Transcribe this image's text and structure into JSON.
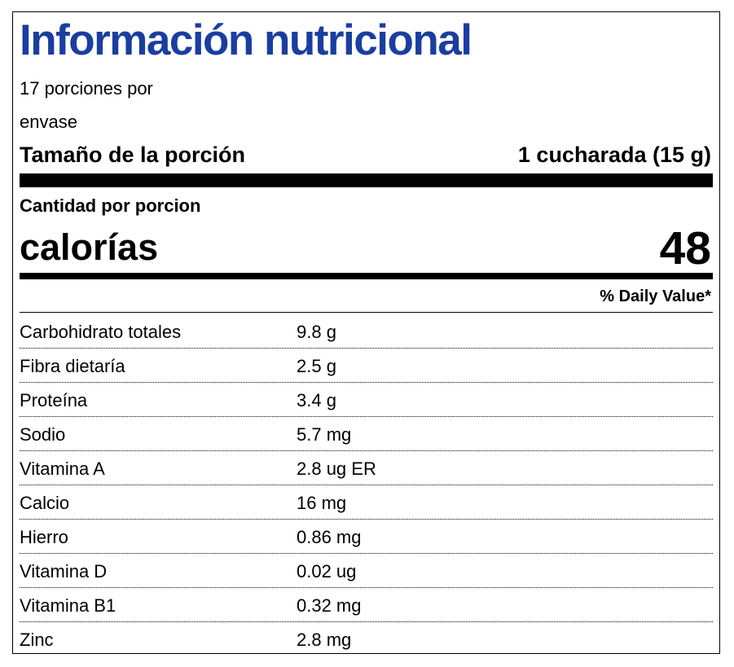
{
  "header": {
    "title": "Información nutricional",
    "servings_line1": "17 porciones por",
    "servings_line2": "envase",
    "serving_size_label": "Tamaño de la porción",
    "serving_size_value": "1 cucharada (15 g)"
  },
  "calories": {
    "amount_label": "Cantidad por porcion",
    "label": "calorías",
    "value": 48
  },
  "daily_value_header": "% Daily Value*",
  "table": {
    "rows": [
      [
        "Carbohidrato totales",
        "9.8 g"
      ],
      [
        "Fibra dietaría",
        "2.5 g"
      ],
      [
        "Proteína",
        "3.4 g"
      ],
      [
        "Sodio",
        "5.7 mg"
      ],
      [
        "Vitamina A",
        "2.8 ug ER"
      ],
      [
        "Calcio",
        "16 mg"
      ],
      [
        "Hierro",
        "0.86 mg"
      ],
      [
        "Vitamina D",
        "0.02 ug"
      ],
      [
        "Vitamina B1",
        "0.32 mg"
      ],
      [
        "Zinc",
        "2.8 mg"
      ]
    ]
  }
}
